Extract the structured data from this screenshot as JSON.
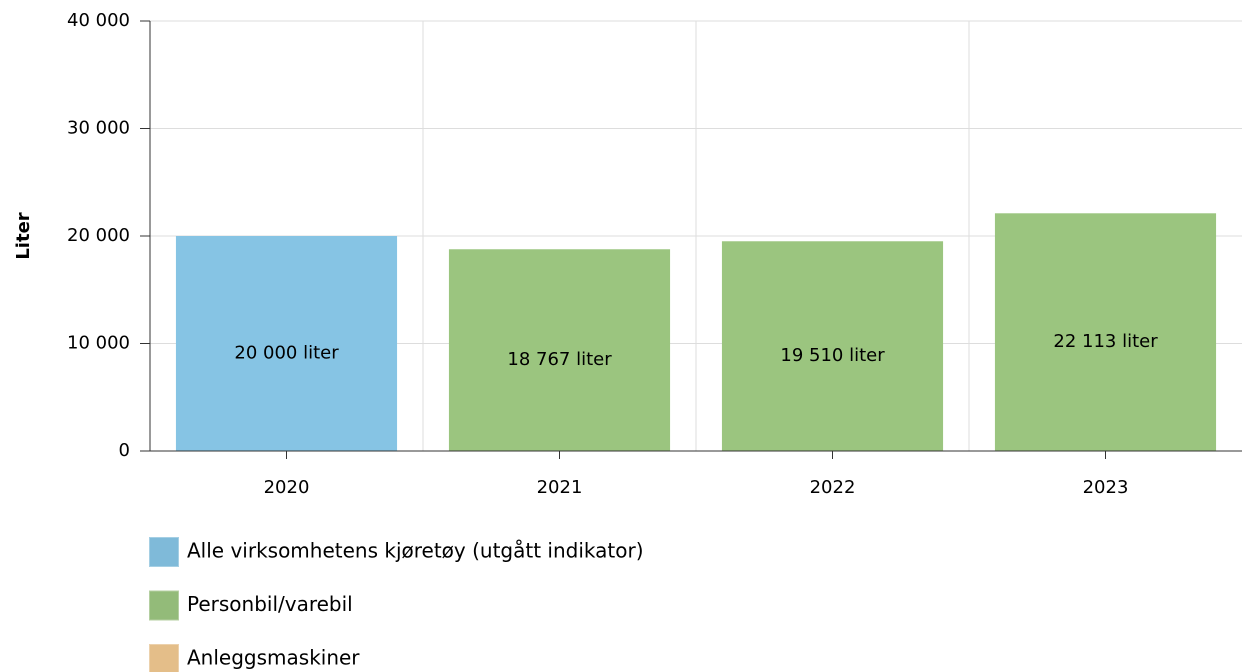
{
  "chart_data": {
    "type": "bar",
    "y_label": "Liter",
    "categories": [
      "2020",
      "2021",
      "2022",
      "2023"
    ],
    "series": [
      {
        "name": "Alle virksomhetens kjøretøy (utgått indikator)",
        "color": "#86c4e4",
        "values": [
          20000,
          null,
          null,
          null
        ],
        "value_labels": [
          "20 000 liter",
          null,
          null,
          null
        ]
      },
      {
        "name": "Personbil/varebil",
        "color": "#9bc57f",
        "values": [
          null,
          18767,
          19510,
          22113
        ],
        "value_labels": [
          null,
          "18 767 liter",
          "19 510 liter",
          "22 113 liter"
        ]
      },
      {
        "name": "Anleggsmaskiner",
        "color": "#f0c890",
        "values": [
          null,
          null,
          null,
          null
        ]
      }
    ],
    "ylim": [
      0,
      40000
    ],
    "yticks": [
      0,
      {
        "value": 10000,
        "label": "10 000"
      },
      {
        "value": 20000,
        "label": "20 000"
      },
      {
        "value": 30000,
        "label": "30 000"
      },
      {
        "value": 40000,
        "label": "40 000"
      }
    ],
    "grid": true
  }
}
